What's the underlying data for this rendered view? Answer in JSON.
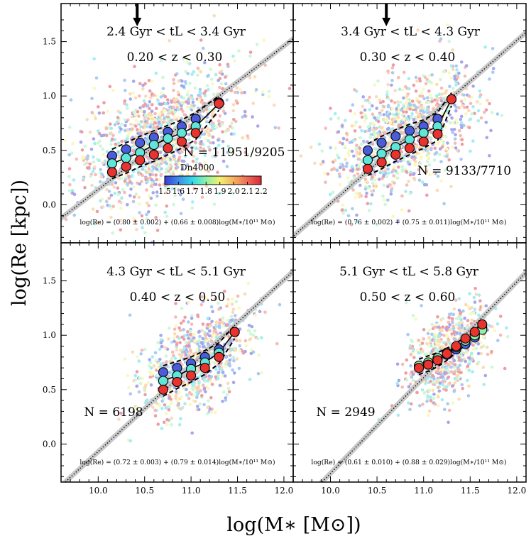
{
  "chart_data": {
    "type": "scatter",
    "figure": {
      "xlabel": "log(M∗ [M⊙])",
      "ylabel": "log(Re [kpc])",
      "xlim": [
        9.6,
        12.1
      ],
      "ylim": [
        -0.35,
        1.85
      ],
      "xticks": [
        "10.0",
        "10.5",
        "11.0",
        "11.5",
        "12.0"
      ],
      "yticks": [
        "0.0",
        "0.5",
        "1.0",
        "1.5"
      ],
      "colorbar": {
        "label": "Dn4000",
        "range": [
          1.5,
          2.2
        ],
        "ticks": [
          "1.5",
          "1.6",
          "1.7",
          "1.8",
          "1.9",
          "2.0",
          "2.1",
          "2.2"
        ],
        "colors": [
          "#3b3bd8",
          "#3f8be8",
          "#35d8e8",
          "#8ff0a8",
          "#f2f070",
          "#f6b060",
          "#ee6a58",
          "#d8283a"
        ]
      }
    },
    "panels": [
      {
        "age_label": "2.4 Gyr < tL < 3.4 Gyr",
        "z_label": "0.20 < z < 0.30",
        "n_label": "N = 11951/9205",
        "fit_label": "log(Re) = (0.80 ± 0.002) + (0.66 ± 0.008)log(M∗/10¹¹ M⊙)",
        "fit": {
          "a": 0.8,
          "b": 0.66
        },
        "show_arrow": true,
        "arrow_x": 10.42,
        "cloud": {
          "x_mean": 10.65,
          "x_sd": 0.45,
          "y_mean": 0.6,
          "y_sd": 0.33,
          "count": 1300
        },
        "track_x": [
          10.15,
          10.3,
          10.45,
          10.6,
          10.75,
          10.9,
          11.05,
          11.3
        ],
        "series": [
          {
            "name": "Dn4000 low",
            "color": "#4a5cd9",
            "values": [
              0.45,
              0.51,
              0.57,
              0.62,
              0.67,
              0.72,
              0.79,
              0.94
            ]
          },
          {
            "name": "Dn4000 mid",
            "color": "#5ee6d8",
            "values": [
              0.38,
              0.43,
              0.48,
              0.55,
              0.61,
              0.66,
              0.72,
              0.93
            ]
          },
          {
            "name": "Dn4000 high",
            "color": "#e8332e",
            "values": [
              0.3,
              0.35,
              0.41,
              0.46,
              0.52,
              0.58,
              0.66,
              0.93
            ]
          }
        ]
      },
      {
        "age_label": "3.4 Gyr < tL < 4.3 Gyr",
        "z_label": "0.30 < z < 0.40",
        "n_label": "N = 9133/7710",
        "fit_label": "log(Re) = (0.76 ± 0.002) + (0.75 ± 0.011)log(M∗/10¹¹ M⊙)",
        "fit": {
          "a": 0.76,
          "b": 0.75
        },
        "show_arrow": true,
        "arrow_x": 10.6,
        "cloud": {
          "x_mean": 10.8,
          "x_sd": 0.38,
          "y_mean": 0.67,
          "y_sd": 0.3,
          "count": 1100
        },
        "track_x": [
          10.4,
          10.55,
          10.7,
          10.85,
          11.0,
          11.15,
          11.3
        ],
        "series": [
          {
            "name": "Dn4000 low",
            "color": "#4a5cd9",
            "values": [
              0.5,
              0.57,
              0.63,
              0.68,
              0.72,
              0.79,
              0.97
            ]
          },
          {
            "name": "Dn4000 mid",
            "color": "#5ee6d8",
            "values": [
              0.41,
              0.47,
              0.53,
              0.6,
              0.66,
              0.72,
              0.97
            ]
          },
          {
            "name": "Dn4000 high",
            "color": "#e8332e",
            "values": [
              0.33,
              0.39,
              0.46,
              0.52,
              0.58,
              0.65,
              0.97
            ]
          }
        ]
      },
      {
        "age_label": "4.3 Gyr < tL < 5.1 Gyr",
        "z_label": "0.40 < z < 0.50",
        "n_label": "N = 6198",
        "fit_label": "log(Re) = (0.72 ± 0.003) + (0.79 ± 0.014)log(M∗/10¹¹ M⊙)",
        "fit": {
          "a": 0.72,
          "b": 0.79
        },
        "show_arrow": false,
        "cloud": {
          "x_mean": 11.05,
          "x_sd": 0.3,
          "y_mean": 0.76,
          "y_sd": 0.26,
          "count": 800
        },
        "track_x": [
          10.7,
          10.85,
          11.0,
          11.15,
          11.3,
          11.47
        ],
        "series": [
          {
            "name": "Dn4000 low",
            "color": "#4a5cd9",
            "values": [
              0.66,
              0.7,
              0.74,
              0.8,
              0.87,
              1.03
            ]
          },
          {
            "name": "Dn4000 mid",
            "color": "#5ee6d8",
            "values": [
              0.58,
              0.63,
              0.69,
              0.75,
              0.84,
              1.03
            ]
          },
          {
            "name": "Dn4000 high",
            "color": "#e8332e",
            "values": [
              0.5,
              0.57,
              0.63,
              0.7,
              0.8,
              1.03
            ]
          }
        ]
      },
      {
        "age_label": "5.1 Gyr < tL < 5.8 Gyr",
        "z_label": "0.50 < z < 0.60",
        "n_label": "N = 2949",
        "fit_label": "log(Re) = (0.61 ± 0.010) + (0.88 ± 0.029)log(M∗/10¹¹ M⊙)",
        "fit": {
          "a": 0.61,
          "b": 0.88
        },
        "show_arrow": false,
        "cloud": {
          "x_mean": 11.25,
          "x_sd": 0.22,
          "y_mean": 0.82,
          "y_sd": 0.22,
          "count": 650
        },
        "track_x": [
          10.95,
          11.05,
          11.15,
          11.25,
          11.35,
          11.45,
          11.55,
          11.63
        ],
        "series": [
          {
            "name": "Dn4000 low",
            "color": "#4a5cd9",
            "values": [
              0.72,
              0.75,
              0.78,
              0.82,
              0.87,
              0.92,
              0.98,
              1.07
            ]
          },
          {
            "name": "Dn4000 mid",
            "color": "#8ff0a8",
            "values": [
              0.72,
              0.75,
              0.79,
              0.84,
              0.89,
              0.95,
              1.0,
              1.05
            ]
          },
          {
            "name": "Dn4000 high",
            "color": "#e8332e",
            "values": [
              0.7,
              0.73,
              0.77,
              0.83,
              0.9,
              0.97,
              1.03,
              1.1
            ]
          }
        ]
      }
    ]
  }
}
